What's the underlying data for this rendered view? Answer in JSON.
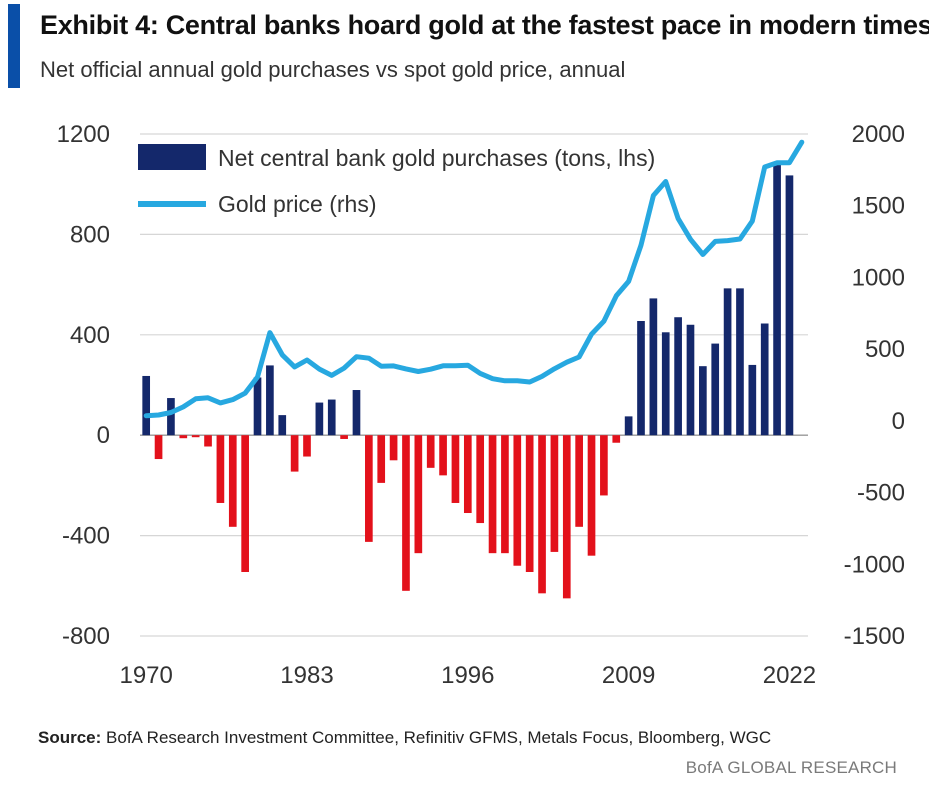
{
  "header": {
    "title": "Exhibit 4: Central banks hoard gold at the fastest pace in modern times",
    "subtitle": "Net official annual gold purchases vs spot gold price, annual"
  },
  "footer": {
    "source_label": "Source:",
    "source_text": "BofA Research Investment Committee, Refinitiv GFMS, Metals Focus, Bloomberg, WGC",
    "brand": "BofA GLOBAL RESEARCH"
  },
  "colors": {
    "accent": "#0a4fa8",
    "positive_bar": "#14286b",
    "negative_bar": "#e3111b",
    "line": "#27a8e0"
  },
  "chart_data": {
    "type": "bar",
    "title": "Exhibit 4: Central banks hoard gold at the fastest pace in modern times",
    "subtitle": "Net official annual gold purchases vs spot gold price, annual",
    "legend_position": "top-left",
    "grid": true,
    "x": [
      1970,
      1971,
      1972,
      1973,
      1974,
      1975,
      1976,
      1977,
      1978,
      1979,
      1980,
      1981,
      1982,
      1983,
      1984,
      1985,
      1986,
      1987,
      1988,
      1989,
      1990,
      1991,
      1992,
      1993,
      1994,
      1995,
      1996,
      1997,
      1998,
      1999,
      2000,
      2001,
      2002,
      2003,
      2004,
      2005,
      2006,
      2007,
      2008,
      2009,
      2010,
      2011,
      2012,
      2013,
      2014,
      2015,
      2016,
      2017,
      2018,
      2019,
      2020,
      2021,
      2022,
      2023
    ],
    "x_tick_labels": [
      "1970",
      "1983",
      "1996",
      "2009",
      "2022"
    ],
    "y_left": {
      "ticks": [
        "1200",
        "800",
        "400",
        "0",
        "-400",
        "-800"
      ],
      "ylim": [
        -800,
        1200
      ]
    },
    "y_right": {
      "ticks": [
        "2000",
        "1500",
        "1000",
        "500",
        "0",
        "-500",
        "-1000",
        "-1500"
      ],
      "ylim": [
        -1500,
        2000
      ]
    },
    "series": [
      {
        "name": "Net central bank gold purchases (tons, lhs)",
        "type": "bar",
        "axis": "left",
        "values": [
          236,
          -95,
          148,
          -12,
          -8,
          -45,
          -270,
          -365,
          -545,
          230,
          278,
          80,
          -145,
          -85,
          130,
          142,
          -15,
          180,
          -425,
          -190,
          -100,
          -620,
          -470,
          -130,
          -160,
          -270,
          -310,
          -350,
          -470,
          -470,
          -520,
          -545,
          -630,
          -465,
          -650,
          -365,
          -480,
          -240,
          -30,
          75,
          455,
          545,
          410,
          470,
          440,
          275,
          365,
          585,
          585,
          280,
          445,
          1080,
          1035,
          0
        ]
      },
      {
        "name": "Gold price (rhs)",
        "type": "line",
        "axis": "right",
        "values": [
          36,
          41,
          58,
          97,
          154,
          161,
          125,
          148,
          193,
          306,
          615,
          460,
          376,
          424,
          361,
          317,
          368,
          447,
          437,
          381,
          383,
          362,
          344,
          360,
          384,
          384,
          388,
          331,
          294,
          279,
          279,
          271,
          310,
          363,
          409,
          445,
          604,
          695,
          872,
          972,
          1225,
          1571,
          1669,
          1411,
          1266,
          1160,
          1251,
          1257,
          1268,
          1393,
          1770,
          1799,
          1800,
          1943
        ]
      }
    ]
  }
}
